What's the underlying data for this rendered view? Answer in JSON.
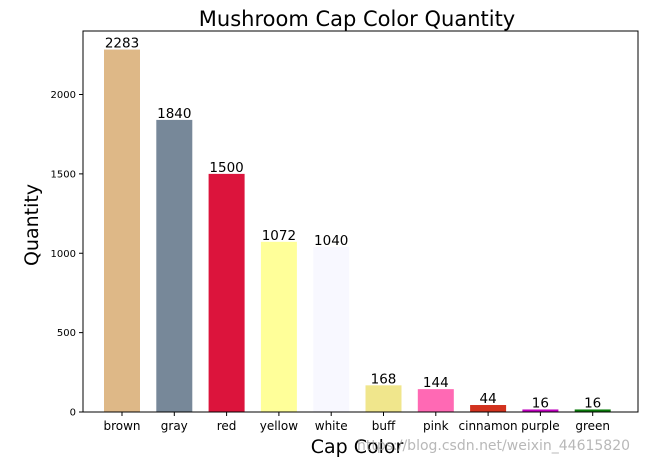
{
  "chart_data": {
    "type": "bar",
    "title": "Mushroom Cap Color Quantity",
    "xlabel": "Cap Color",
    "ylabel": "Quantity",
    "categories": [
      "brown",
      "gray",
      "red",
      "yellow",
      "white",
      "buff",
      "pink",
      "cinnamon",
      "purple",
      "green"
    ],
    "values": [
      2283,
      1840,
      1500,
      1072,
      1040,
      168,
      144,
      44,
      16,
      16
    ],
    "colors": [
      "#deb887",
      "#778899",
      "#dc143c",
      "#ffff99",
      "#f8f8ff",
      "#f0e68c",
      "#ff69b4",
      "#d2321e",
      "#bf00bf",
      "#0a7a0a"
    ],
    "yticks": [
      0,
      500,
      1000,
      1500,
      2000
    ],
    "ylim": [
      0,
      2400
    ],
    "grid": false,
    "legend": "none"
  },
  "watermark": "https://blog.csdn.net/weixin_44615820"
}
